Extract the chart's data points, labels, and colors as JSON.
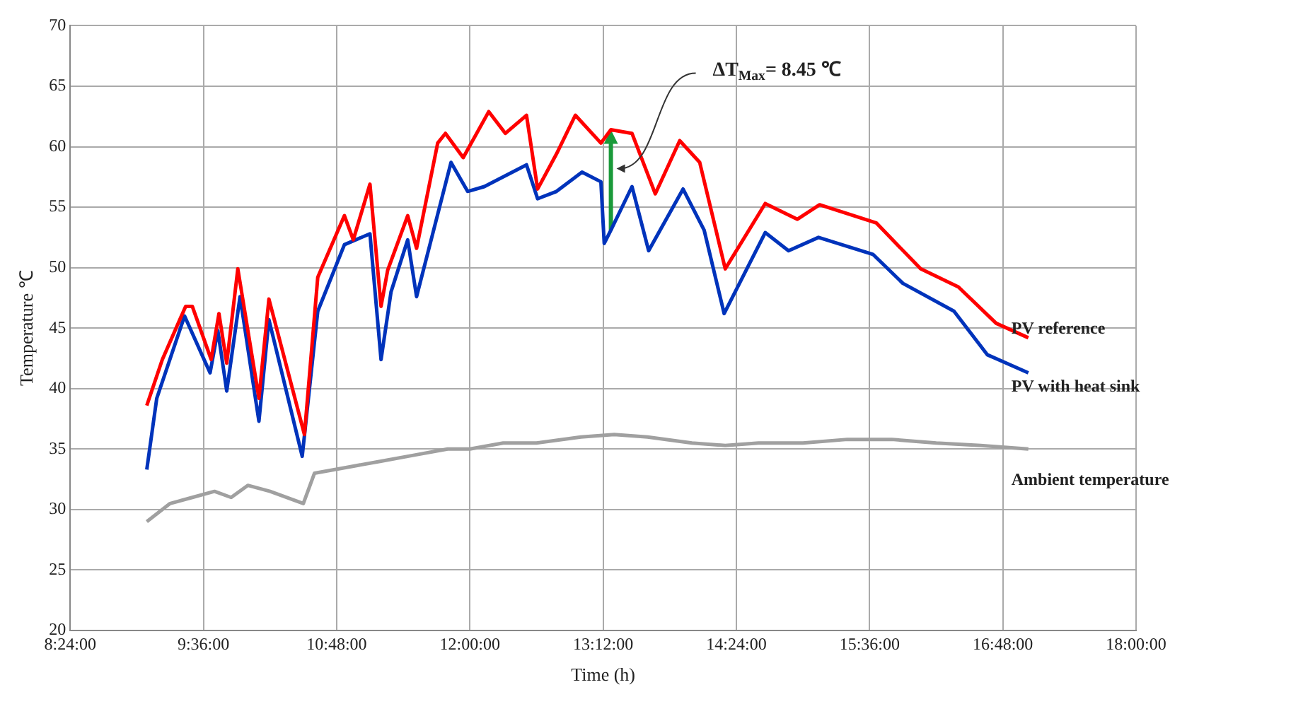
{
  "chart_data": {
    "type": "line",
    "xlabel": "Time (h)",
    "ylabel": "Temperature ℃",
    "xlim": [
      8.4,
      18
    ],
    "xticks": [
      {
        "value": 8.4,
        "label": "8:24:00"
      },
      {
        "value": 9.6,
        "label": "9:36:00"
      },
      {
        "value": 10.8,
        "label": "10:48:00"
      },
      {
        "value": 12,
        "label": "12:00:00"
      },
      {
        "value": 13.2,
        "label": "13:12:00"
      },
      {
        "value": 14.4,
        "label": "14:24:00"
      },
      {
        "value": 15.6,
        "label": "15:36:00"
      },
      {
        "value": 16.8,
        "label": "16:48:00"
      },
      {
        "value": 18,
        "label": "18:00:00"
      }
    ],
    "ylim": [
      20,
      70
    ],
    "yticks": [
      20,
      25,
      30,
      35,
      40,
      45,
      50,
      55,
      60,
      65,
      70
    ],
    "grid": true,
    "legend": false,
    "marker": "none",
    "line_style": "solid",
    "series": [
      {
        "name": "PV reference",
        "color": "#ff0000",
        "x": [
          9.09,
          9.23,
          9.44,
          9.5,
          9.67,
          9.74,
          9.81,
          9.91,
          10.1,
          10.19,
          10.51,
          10.63,
          10.87,
          10.95,
          11.1,
          11.2,
          11.26,
          11.44,
          11.52,
          11.71,
          11.78,
          11.94,
          12.17,
          12.32,
          12.51,
          12.61,
          12.78,
          12.95,
          13.18,
          13.27,
          13.46,
          13.67,
          13.89,
          14.07,
          14.3,
          14.66,
          14.95,
          15.15,
          15.66,
          16.06,
          16.4,
          16.74,
          17.03
        ],
        "values": [
          38.6,
          42.4,
          46.8,
          46.8,
          42.4,
          46.2,
          42.1,
          49.9,
          39.2,
          47.4,
          36.2,
          49.2,
          54.3,
          52.3,
          56.9,
          46.8,
          49.8,
          54.3,
          51.6,
          60.3,
          61.1,
          59.1,
          62.9,
          61.1,
          62.6,
          56.5,
          59.4,
          62.6,
          60.3,
          61.4,
          61.1,
          56.1,
          60.5,
          58.7,
          49.9,
          55.3,
          54,
          55.2,
          53.7,
          49.9,
          48.4,
          45.4,
          44.2
        ]
      },
      {
        "name": "PV with heat sink",
        "color": "#0033bb",
        "x": [
          9.09,
          9.18,
          9.43,
          9.66,
          9.73,
          9.81,
          9.93,
          10.1,
          10.19,
          10.49,
          10.63,
          10.87,
          11.1,
          11.2,
          11.29,
          11.44,
          11.52,
          11.83,
          11.98,
          12.13,
          12.51,
          12.61,
          12.78,
          13.01,
          13.18,
          13.21,
          13.27,
          13.46,
          13.61,
          13.92,
          14.11,
          14.29,
          14.66,
          14.87,
          15.14,
          15.63,
          15.9,
          16.36,
          16.66,
          17.03
        ],
        "values": [
          33.3,
          39.2,
          46,
          41.3,
          44.8,
          39.8,
          47.6,
          37.3,
          45.7,
          34.4,
          46.4,
          51.9,
          52.8,
          42.4,
          48,
          52.3,
          47.6,
          58.7,
          56.3,
          56.7,
          58.5,
          55.7,
          56.3,
          57.9,
          57.1,
          52,
          53.1,
          56.7,
          51.4,
          56.5,
          53.1,
          46.2,
          52.9,
          51.4,
          52.5,
          51.1,
          48.7,
          46.4,
          42.8,
          41.3
        ]
      },
      {
        "name": "Ambient temperature",
        "color": "#a0a0a0",
        "x": [
          9.09,
          9.3,
          9.5,
          9.7,
          9.85,
          10.0,
          10.2,
          10.5,
          10.6,
          10.9,
          11.2,
          11.5,
          11.8,
          12.0,
          12.3,
          12.6,
          13.0,
          13.3,
          13.6,
          14.0,
          14.3,
          14.6,
          15.0,
          15.4,
          15.8,
          16.2,
          16.6,
          17.03
        ],
        "values": [
          29,
          30.5,
          31,
          31.5,
          31,
          32,
          31.5,
          30.5,
          33,
          33.5,
          34,
          34.5,
          35,
          35,
          35.5,
          35.5,
          36,
          36.2,
          36,
          35.5,
          35.3,
          35.5,
          35.5,
          35.8,
          35.8,
          35.5,
          35.3,
          35
        ]
      }
    ],
    "annotations": [
      "ΔT$_{Max}$= 8.45 ℃"
    ]
  }
}
